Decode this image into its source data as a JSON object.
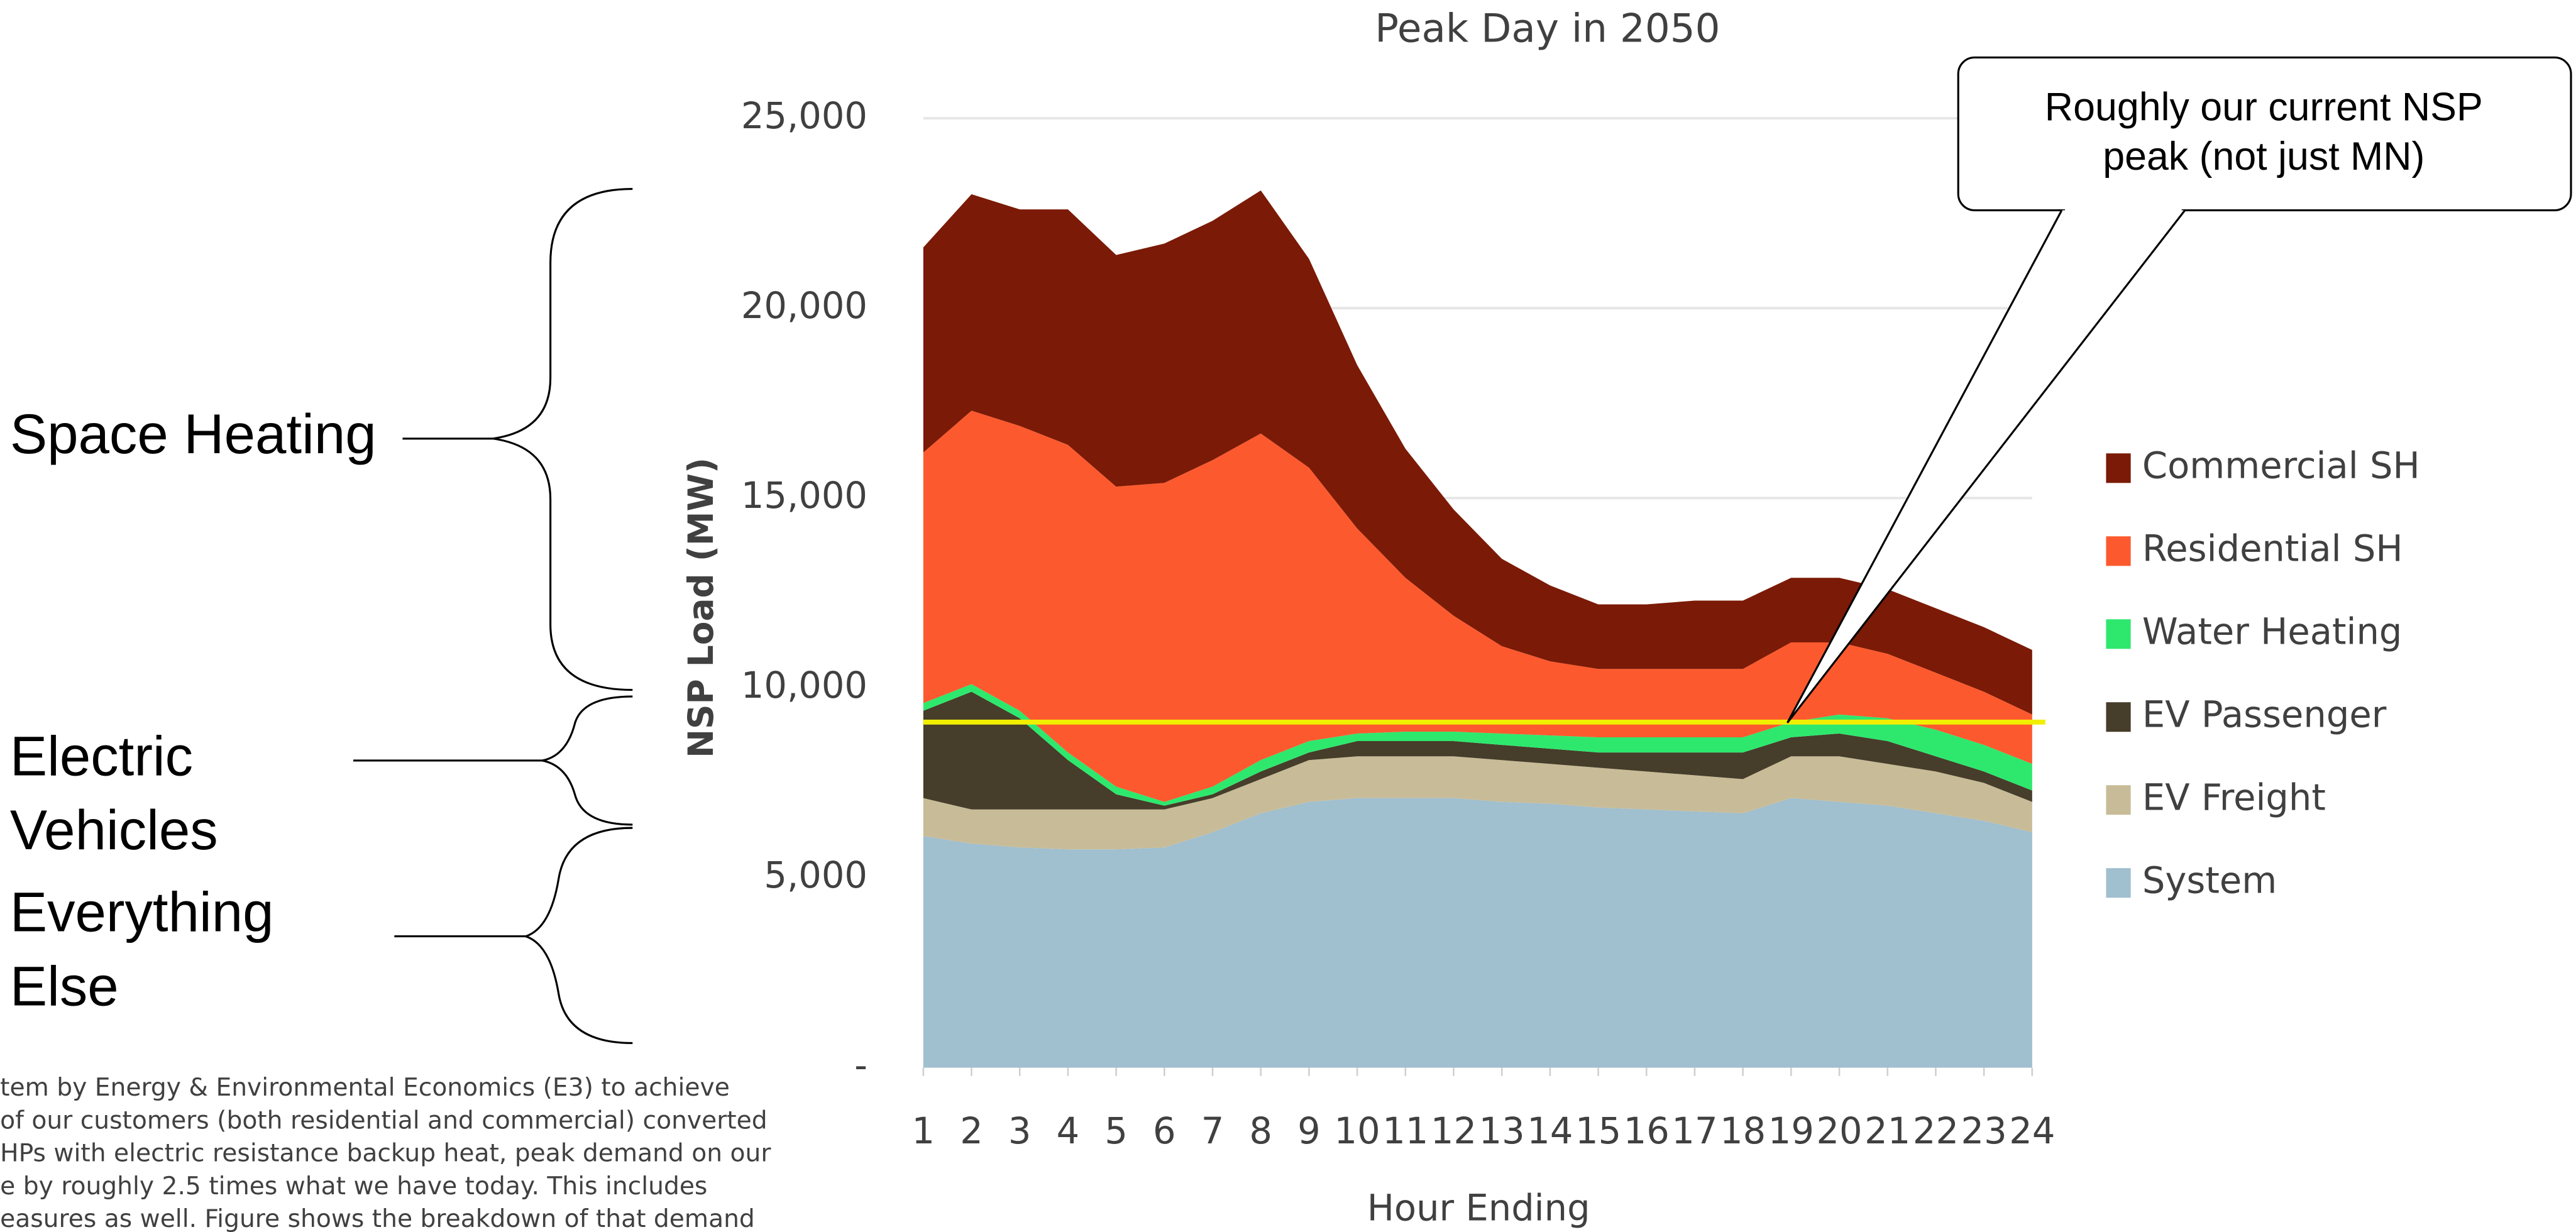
{
  "chart_data": {
    "type": "stacked_area",
    "title": "Peak Day in 2050",
    "x_label": "Hour Ending",
    "y_label": "NSP Load (MW)",
    "categories": [
      "1",
      "2",
      "3",
      "4",
      "5",
      "6",
      "7",
      "8",
      "9",
      "10",
      "11",
      "12",
      "13",
      "14",
      "15",
      "16",
      "17",
      "18",
      "19",
      "20",
      "21",
      "22",
      "23",
      "24"
    ],
    "series": [
      {
        "name": "System",
        "color": "#a0bfcf",
        "values": [
          6100,
          5900,
          5800,
          5750,
          5750,
          5800,
          6200,
          6700,
          7000,
          7100,
          7100,
          7100,
          7000,
          6950,
          6850,
          6800,
          6750,
          6700,
          7100,
          7000,
          6900,
          6700,
          6500,
          6200
        ]
      },
      {
        "name": "EV Freight",
        "color": "#c8bc98",
        "values": [
          1000,
          900,
          1000,
          1050,
          1050,
          1000,
          900,
          900,
          1100,
          1100,
          1100,
          1100,
          1100,
          1050,
          1050,
          1000,
          950,
          900,
          1100,
          1200,
          1100,
          1100,
          1000,
          800
        ]
      },
      {
        "name": "EV Passenger",
        "color": "#463d2a",
        "values": [
          2300,
          3100,
          2400,
          1300,
          400,
          100,
          100,
          200,
          200,
          400,
          400,
          400,
          400,
          400,
          400,
          500,
          600,
          700,
          500,
          600,
          600,
          400,
          300,
          300
        ]
      },
      {
        "name": "Water Heating",
        "color": "#2ee86e",
        "values": [
          200,
          200,
          200,
          200,
          200,
          100,
          200,
          300,
          300,
          200,
          250,
          250,
          300,
          350,
          400,
          400,
          400,
          400,
          400,
          500,
          600,
          700,
          700,
          700
        ]
      },
      {
        "name": "Residential SH",
        "color": "#fc5a2e",
        "values": [
          6600,
          7200,
          7500,
          8100,
          7900,
          8400,
          8600,
          8600,
          7200,
          5400,
          4050,
          3050,
          2300,
          1950,
          1800,
          1800,
          1800,
          1800,
          2100,
          1900,
          1700,
          1500,
          1400,
          1300
        ]
      },
      {
        "name": "Commercial SH",
        "color": "#7b1a06",
        "values": [
          5400,
          5700,
          5700,
          6200,
          6100,
          6300,
          6300,
          6400,
          5500,
          4300,
          3400,
          2800,
          2300,
          2000,
          1700,
          1700,
          1800,
          1800,
          1700,
          1700,
          1700,
          1700,
          1700,
          1700
        ]
      }
    ],
    "ylim": [
      0,
      25000
    ],
    "yticks": [
      {
        "value": 0,
        "label": "-"
      },
      {
        "value": 5000,
        "label": "5,000"
      },
      {
        "value": 10000,
        "label": "10,000"
      },
      {
        "value": 15000,
        "label": "15,000"
      },
      {
        "value": 20000,
        "label": "20,000"
      },
      {
        "value": 25000,
        "label": "25,000"
      }
    ],
    "grid": true,
    "legend": "right",
    "reference_line": {
      "value": 9100,
      "color": "#f2ee00"
    },
    "callout": {
      "lines": [
        "Roughly our current NSP",
        "peak (not just MN)"
      ]
    },
    "brace_labels": [
      {
        "lines": [
          "Space Heating"
        ]
      },
      {
        "lines": [
          "Electric",
          "Vehicles"
        ]
      },
      {
        "lines": [
          "Everything",
          "Else"
        ]
      }
    ],
    "footnote_lines": [
      "tem by Energy & Environmental Economics (E3) to achieve",
      "of our customers (both residential and commercial) converted",
      "HPs with electric resistance backup heat, peak demand on our",
      "e by roughly 2.5 times what we have today. This includes",
      "easures as well. Figure shows the breakdown of that demand"
    ]
  }
}
